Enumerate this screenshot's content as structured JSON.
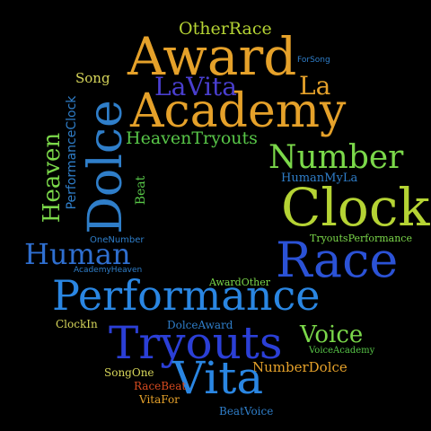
{
  "words": [
    {
      "text": "OtherRace",
      "color": "#b5d334"
    },
    {
      "text": "Award",
      "color": "#e5a12a"
    },
    {
      "text": "ForSong",
      "color": "#2f7ec9"
    },
    {
      "text": "LaVita",
      "color": "#4a3fd0"
    },
    {
      "text": "La",
      "color": "#e5a12a"
    },
    {
      "text": "Song",
      "color": "#d7d65a"
    },
    {
      "text": "Academy",
      "color": "#e5a12a"
    },
    {
      "text": "PerformanceClock",
      "color": "#2f7ec9"
    },
    {
      "text": "Dolce",
      "color": "#2f7ec9"
    },
    {
      "text": "Heaven",
      "color": "#7bd84a"
    },
    {
      "text": "HeavenTryouts",
      "color": "#58c748"
    },
    {
      "text": "Number",
      "color": "#7bd84a"
    },
    {
      "text": "HumanMyLa",
      "color": "#2f7ec9"
    },
    {
      "text": "Beat",
      "color": "#58c748"
    },
    {
      "text": "Clock",
      "color": "#b5d334"
    },
    {
      "text": "OneNumber",
      "color": "#2f7ec9"
    },
    {
      "text": "TryoutsPerformance",
      "color": "#7bd84a"
    },
    {
      "text": "Human",
      "color": "#2f6fd0"
    },
    {
      "text": "Race",
      "color": "#2b52d6"
    },
    {
      "text": "AcademyHeaven",
      "color": "#2f7ec9"
    },
    {
      "text": "AwardOther",
      "color": "#7bd84a"
    },
    {
      "text": "Performance",
      "color": "#2a86e2"
    },
    {
      "text": "ClockIn",
      "color": "#d7d65a"
    },
    {
      "text": "DolceAward",
      "color": "#2f7ec9"
    },
    {
      "text": "Voice",
      "color": "#7bd84a"
    },
    {
      "text": "Tryouts",
      "color": "#2b3fd6"
    },
    {
      "text": "VoiceAcademy",
      "color": "#58c748"
    },
    {
      "text": "NumberDolce",
      "color": "#e5a12a"
    },
    {
      "text": "Vita",
      "color": "#2a86e2"
    },
    {
      "text": "SongOne",
      "color": "#d7d65a"
    },
    {
      "text": "RaceBeat",
      "color": "#d64a1f"
    },
    {
      "text": "VitaFor",
      "color": "#e5a12a"
    },
    {
      "text": "BeatVoice",
      "color": "#2f7ec9"
    }
  ]
}
